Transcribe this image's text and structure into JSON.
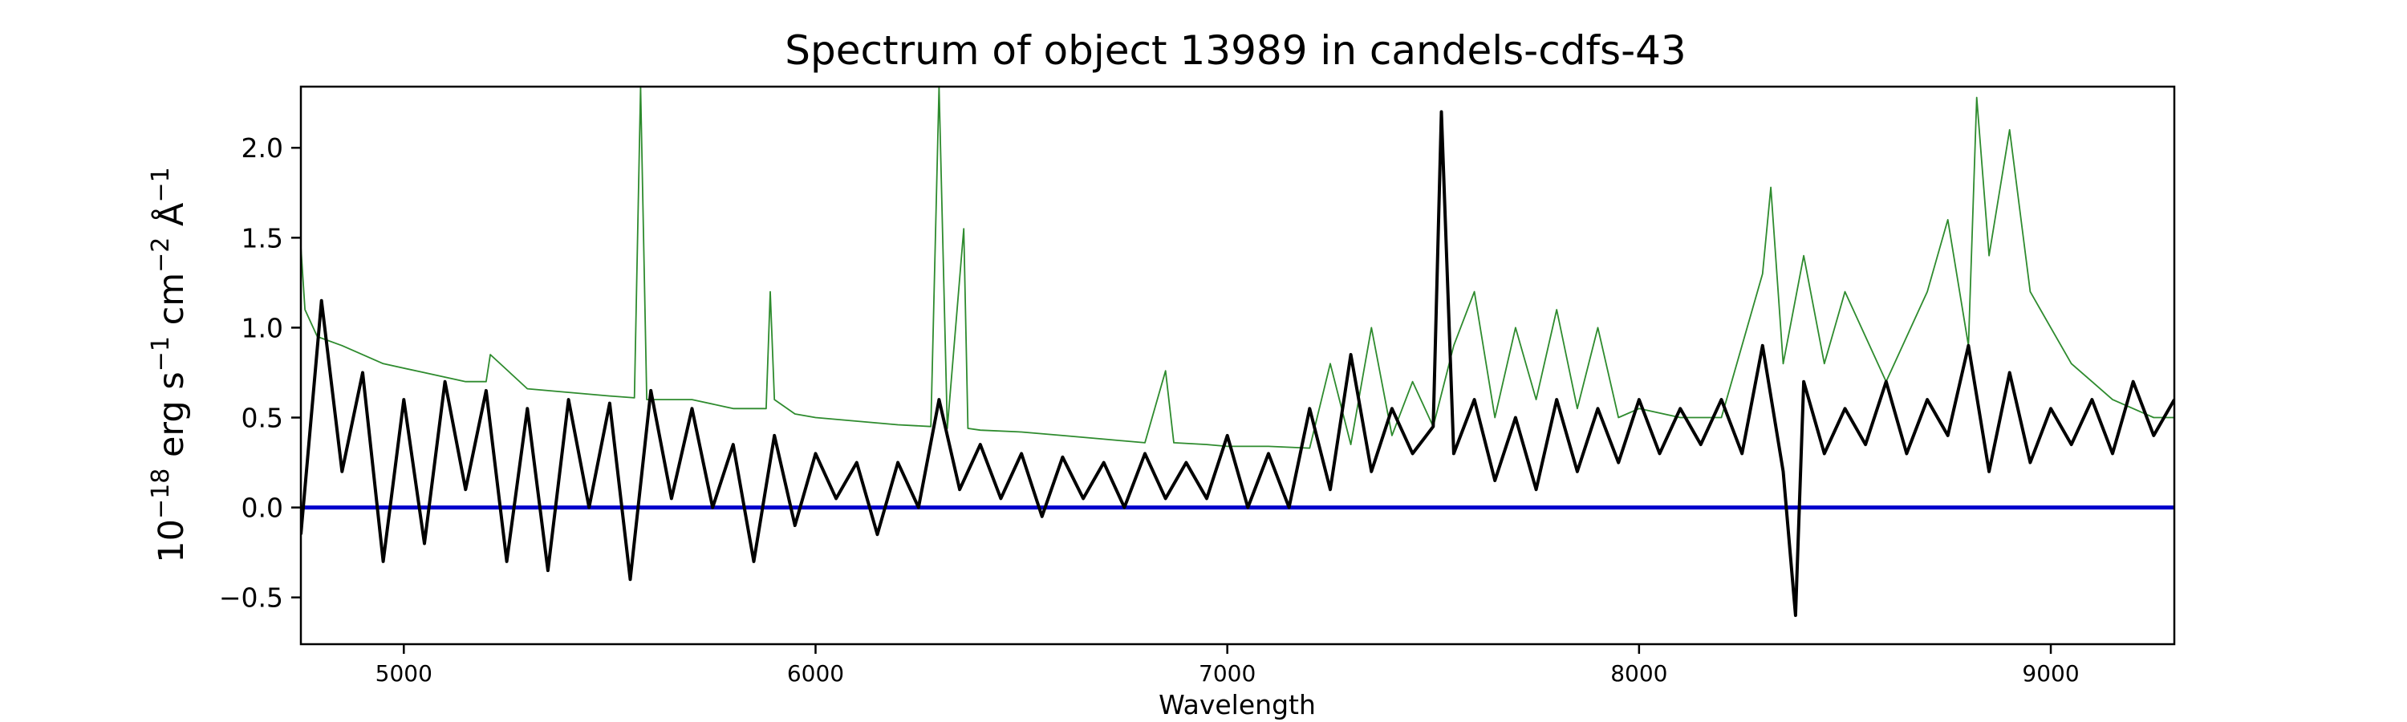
{
  "chart_data": {
    "type": "line",
    "title": "Spectrum of object 13989 in candels-cdfs-43",
    "xlabel": "Wavelength",
    "ylabel_parts": {
      "base": "10",
      "exp": "−18",
      "unit1": " erg s",
      "exp1": "−1",
      "unit2": " cm",
      "exp2": "−2",
      "unit3": " Å",
      "exp3": "−1"
    },
    "xlim": [
      4750,
      9300
    ],
    "ylim": [
      -0.76,
      2.34
    ],
    "xticks": [
      5000,
      6000,
      7000,
      8000,
      9000
    ],
    "xtick_labels": [
      "5000",
      "6000",
      "7000",
      "8000",
      "9000"
    ],
    "yticks": [
      -0.5,
      0.0,
      0.5,
      1.0,
      1.5,
      2.0
    ],
    "ytick_labels": [
      "−0.5",
      "0.0",
      "0.5",
      "1.0",
      "1.5",
      "2.0"
    ],
    "grid": false,
    "legend": "none",
    "colors": {
      "flux": "#000000",
      "error": "#2e8b2e",
      "zero": "#0000cc"
    },
    "zero_line": 0.0,
    "flux": {
      "x": [
        4750,
        4800,
        4850,
        4900,
        4950,
        5000,
        5050,
        5100,
        5150,
        5200,
        5250,
        5300,
        5350,
        5400,
        5450,
        5500,
        5550,
        5600,
        5650,
        5700,
        5750,
        5800,
        5850,
        5900,
        5950,
        6000,
        6050,
        6100,
        6150,
        6200,
        6250,
        6300,
        6350,
        6400,
        6450,
        6500,
        6550,
        6600,
        6650,
        6700,
        6750,
        6800,
        6850,
        6900,
        6950,
        7000,
        7050,
        7100,
        7150,
        7200,
        7250,
        7300,
        7350,
        7400,
        7450,
        7500,
        7520,
        7550,
        7600,
        7650,
        7700,
        7750,
        7800,
        7850,
        7900,
        7950,
        8000,
        8050,
        8100,
        8150,
        8200,
        8250,
        8300,
        8350,
        8380,
        8400,
        8450,
        8500,
        8550,
        8600,
        8650,
        8700,
        8750,
        8800,
        8850,
        8900,
        8950,
        9000,
        9050,
        9100,
        9150,
        9200,
        9250,
        9300
      ],
      "y": [
        -0.15,
        1.15,
        0.2,
        0.75,
        -0.3,
        0.6,
        -0.2,
        0.7,
        0.1,
        0.65,
        -0.3,
        0.55,
        -0.35,
        0.6,
        0.0,
        0.58,
        -0.4,
        0.65,
        0.05,
        0.55,
        0.0,
        0.35,
        -0.3,
        0.4,
        -0.1,
        0.3,
        0.05,
        0.25,
        -0.15,
        0.25,
        0.0,
        0.6,
        0.1,
        0.35,
        0.05,
        0.3,
        -0.05,
        0.28,
        0.05,
        0.25,
        0.0,
        0.3,
        0.05,
        0.25,
        0.05,
        0.4,
        0.0,
        0.3,
        0.0,
        0.55,
        0.1,
        0.85,
        0.2,
        0.55,
        0.3,
        0.45,
        2.2,
        0.3,
        0.6,
        0.15,
        0.5,
        0.1,
        0.6,
        0.2,
        0.55,
        0.25,
        0.6,
        0.3,
        0.55,
        0.35,
        0.6,
        0.3,
        0.9,
        0.2,
        -0.6,
        0.7,
        0.3,
        0.55,
        0.35,
        0.7,
        0.3,
        0.6,
        0.4,
        0.9,
        0.2,
        0.75,
        0.25,
        0.55,
        0.35,
        0.6,
        0.3,
        0.7,
        0.4,
        0.6
      ]
    },
    "error": {
      "x": [
        4750,
        4760,
        4790,
        4850,
        4950,
        5050,
        5150,
        5200,
        5210,
        5300,
        5400,
        5500,
        5560,
        5575,
        5590,
        5650,
        5700,
        5800,
        5880,
        5890,
        5900,
        5950,
        6000,
        6100,
        6200,
        6280,
        6300,
        6320,
        6360,
        6370,
        6400,
        6500,
        6600,
        6700,
        6800,
        6850,
        6870,
        6950,
        7000,
        7100,
        7200,
        7250,
        7300,
        7350,
        7400,
        7450,
        7500,
        7550,
        7600,
        7650,
        7700,
        7750,
        7800,
        7850,
        7900,
        7950,
        8000,
        8100,
        8200,
        8300,
        8320,
        8350,
        8400,
        8450,
        8500,
        8600,
        8700,
        8750,
        8800,
        8820,
        8850,
        8900,
        8950,
        9000,
        9050,
        9100,
        9150,
        9200,
        9250,
        9300
      ],
      "y": [
        1.45,
        1.1,
        0.95,
        0.9,
        0.8,
        0.75,
        0.7,
        0.7,
        0.85,
        0.66,
        0.64,
        0.62,
        0.61,
        2.34,
        0.6,
        0.6,
        0.6,
        0.55,
        0.55,
        1.2,
        0.6,
        0.52,
        0.5,
        0.48,
        0.46,
        0.45,
        2.34,
        0.44,
        1.55,
        0.44,
        0.43,
        0.42,
        0.4,
        0.38,
        0.36,
        0.76,
        0.36,
        0.35,
        0.34,
        0.34,
        0.33,
        0.8,
        0.35,
        1.0,
        0.4,
        0.7,
        0.45,
        0.9,
        1.2,
        0.5,
        1.0,
        0.6,
        1.1,
        0.55,
        1.0,
        0.5,
        0.55,
        0.5,
        0.5,
        1.3,
        1.78,
        0.8,
        1.4,
        0.8,
        1.2,
        0.7,
        1.2,
        1.6,
        0.9,
        2.28,
        1.4,
        2.1,
        1.2,
        1.0,
        0.8,
        0.7,
        0.6,
        0.55,
        0.5,
        0.5
      ]
    }
  }
}
